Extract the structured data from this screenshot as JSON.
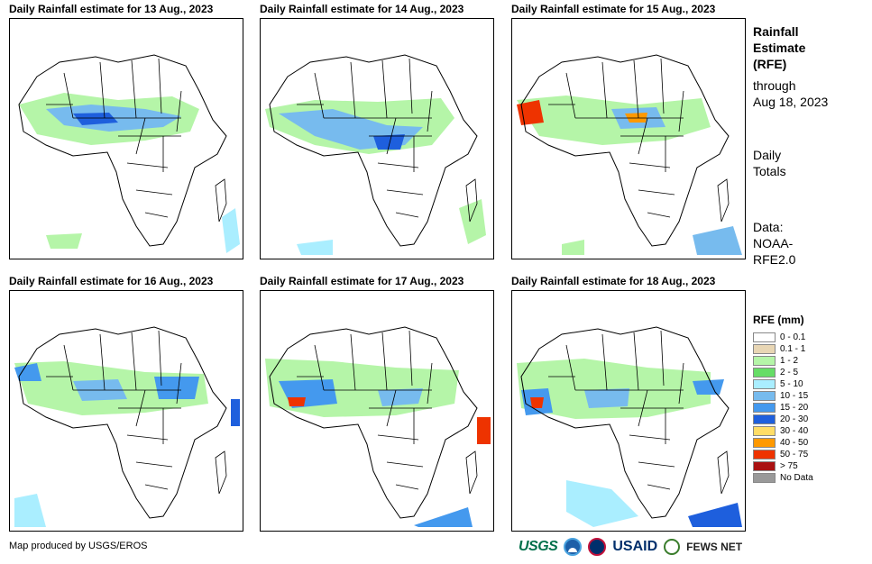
{
  "panels": [
    {
      "title": "Daily Rainfall estimate for 13 Aug., 2023"
    },
    {
      "title": "Daily Rainfall estimate for 14 Aug., 2023"
    },
    {
      "title": "Daily Rainfall estimate for 15 Aug., 2023"
    },
    {
      "title": "Daily Rainfall estimate for 16 Aug., 2023"
    },
    {
      "title": "Daily Rainfall estimate for 17 Aug., 2023"
    },
    {
      "title": "Daily Rainfall estimate for 18 Aug., 2023"
    }
  ],
  "sidebar": {
    "title_lines": [
      "Rainfall",
      "Estimate",
      "(RFE)"
    ],
    "through_lines": [
      "through",
      "Aug 18, 2023"
    ],
    "totals_lines": [
      "Daily",
      "Totals"
    ],
    "data_lines": [
      "Data:",
      "NOAA-",
      "RFE2.0"
    ]
  },
  "legend": {
    "title": "RFE (mm)",
    "items": [
      {
        "label": "0 - 0.1",
        "color": "#ffffff"
      },
      {
        "label": "0.1 - 1",
        "color": "#e8d6b4"
      },
      {
        "label": "1 - 2",
        "color": "#b5f5a8"
      },
      {
        "label": "2 - 5",
        "color": "#66dd66"
      },
      {
        "label": "5 - 10",
        "color": "#aaeeff"
      },
      {
        "label": "10 - 15",
        "color": "#77bbee"
      },
      {
        "label": "15 - 20",
        "color": "#4499ee"
      },
      {
        "label": "20 - 30",
        "color": "#1e5fdd"
      },
      {
        "label": "30 - 40",
        "color": "#ffdd66"
      },
      {
        "label": "40 - 50",
        "color": "#ff9900"
      },
      {
        "label": "50 - 75",
        "color": "#ee3300"
      },
      {
        "label": "> 75",
        "color": "#aa1111"
      },
      {
        "label": "No Data",
        "color": "#999999"
      }
    ]
  },
  "footer": {
    "credit": "Map produced by USGS/EROS",
    "logos": {
      "usgs": "USGS",
      "usaid": "USAID",
      "fews": "FEWS NET"
    }
  }
}
